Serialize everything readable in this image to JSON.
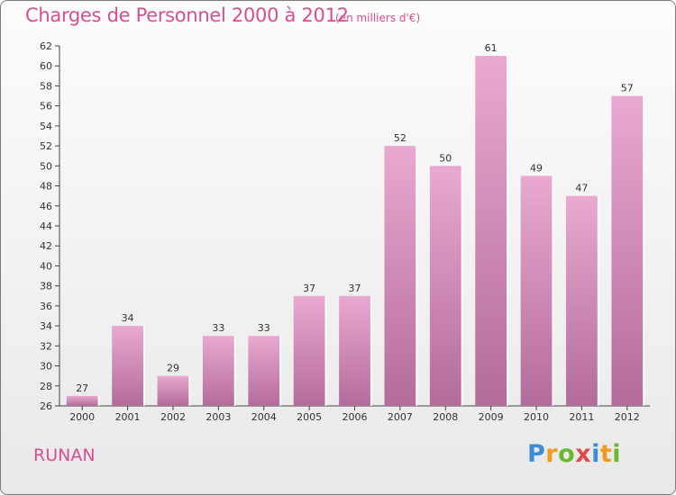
{
  "header": {
    "title": "Charges de Personnel 2000 à 2012",
    "subtitle": "(en milliers d'€)"
  },
  "footer": {
    "commune": "RUNAN",
    "logo_text": "Proxiti",
    "logo_colors": [
      "#3b8ed6",
      "#f29a1e",
      "#6ab82e",
      "#e04b4b",
      "#3b8ed6",
      "#f29a1e",
      "#6ab82e"
    ]
  },
  "colors": {
    "bar_light": "#e9a9d0",
    "bar_dark": "#b36c9a",
    "accent": "#d4508f"
  },
  "chart_data": {
    "type": "bar",
    "title": "Charges de Personnel 2000 à 2012",
    "subtitle": "(en milliers d'€)",
    "categories": [
      "2000",
      "2001",
      "2002",
      "2003",
      "2004",
      "2005",
      "2006",
      "2007",
      "2008",
      "2009",
      "2010",
      "2011",
      "2012"
    ],
    "values": [
      27,
      34,
      29,
      33,
      33,
      37,
      37,
      52,
      50,
      61,
      49,
      47,
      57
    ],
    "ylim": [
      26,
      62
    ],
    "yticks": [
      26,
      28,
      30,
      32,
      34,
      36,
      38,
      40,
      42,
      44,
      46,
      48,
      50,
      52,
      54,
      56,
      58,
      60,
      62
    ],
    "grid": false,
    "legend": "none"
  }
}
